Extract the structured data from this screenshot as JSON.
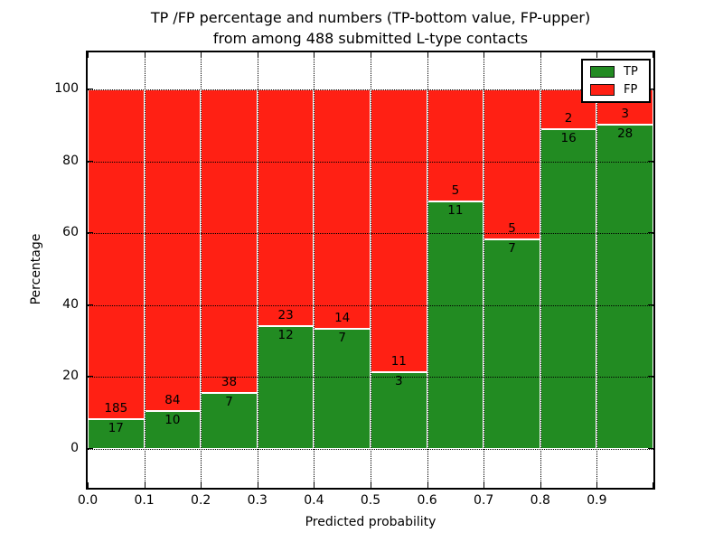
{
  "figure": {
    "title_line1": "TP /FP percentage and numbers (TP-bottom value, FP-upper)",
    "title_line2": "from among 488 submitted L-type contacts"
  },
  "chart_data": {
    "type": "bar",
    "stacked": true,
    "normalized_to_percent": true,
    "title": "TP /FP percentage and numbers (TP-bottom value, FP-upper) from among 488 submitted L-type contacts",
    "total_contacts": 488,
    "xlabel": "Predicted probability",
    "ylabel": "Percentage",
    "bin_edges": [
      0.0,
      0.1,
      0.2,
      0.3,
      0.4,
      0.5,
      0.6,
      0.7,
      0.8,
      0.9,
      1.0
    ],
    "x_tick_labels": [
      "0.0",
      "0.1",
      "0.2",
      "0.3",
      "0.4",
      "0.5",
      "0.6",
      "0.7",
      "0.8",
      "0.9"
    ],
    "y_tick_values": [
      0,
      20,
      40,
      60,
      80,
      100
    ],
    "xlim": [
      0.0,
      1.0
    ],
    "ylim": [
      -10.8,
      110.3
    ],
    "grid": "dotted-black-over-bars",
    "bar_edge_color": "#ffffff",
    "legend_position": "upper right",
    "series": [
      {
        "name": "TP",
        "color": "#228b22",
        "values": [
          17,
          10,
          7,
          12,
          7,
          3,
          11,
          7,
          16,
          28
        ]
      },
      {
        "name": "FP",
        "color": "#ff2014",
        "values": [
          185,
          84,
          38,
          23,
          14,
          11,
          5,
          5,
          2,
          3
        ]
      }
    ],
    "tp_percent_per_bin": [
      8.42,
      10.64,
      15.56,
      34.29,
      33.33,
      21.43,
      68.75,
      58.33,
      88.89,
      90.32
    ]
  }
}
